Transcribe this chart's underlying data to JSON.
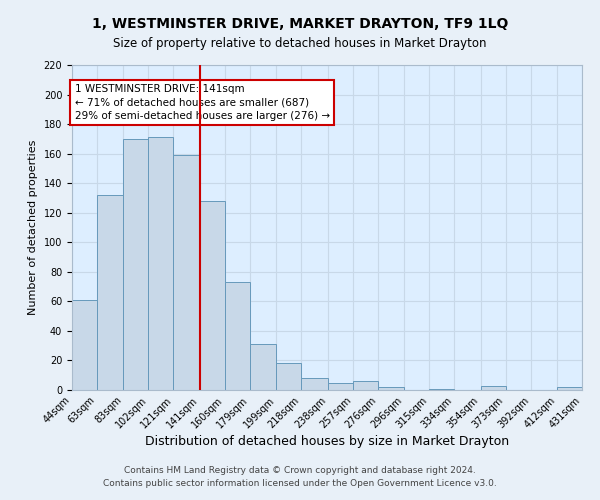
{
  "title": "1, WESTMINSTER DRIVE, MARKET DRAYTON, TF9 1LQ",
  "subtitle": "Size of property relative to detached houses in Market Drayton",
  "xlabel": "Distribution of detached houses by size in Market Drayton",
  "ylabel": "Number of detached properties",
  "bin_labels": [
    "44sqm",
    "63sqm",
    "83sqm",
    "102sqm",
    "121sqm",
    "141sqm",
    "160sqm",
    "179sqm",
    "199sqm",
    "218sqm",
    "238sqm",
    "257sqm",
    "276sqm",
    "296sqm",
    "315sqm",
    "334sqm",
    "354sqm",
    "373sqm",
    "392sqm",
    "412sqm",
    "431sqm"
  ],
  "bin_edges": [
    44,
    63,
    83,
    102,
    121,
    141,
    160,
    179,
    199,
    218,
    238,
    257,
    276,
    296,
    315,
    334,
    354,
    373,
    392,
    412,
    431
  ],
  "bar_values": [
    61,
    132,
    170,
    171,
    159,
    128,
    73,
    31,
    18,
    8,
    5,
    6,
    2,
    0,
    1,
    0,
    3,
    0,
    0,
    2
  ],
  "bar_color": "#c8d8e8",
  "bar_edge_color": "#6699bb",
  "vline_x": 141,
  "vline_color": "#cc0000",
  "annotation_title": "1 WESTMINSTER DRIVE: 141sqm",
  "annotation_line1": "← 71% of detached houses are smaller (687)",
  "annotation_line2": "29% of semi-detached houses are larger (276) →",
  "annotation_box_color": "#cc0000",
  "ylim": [
    0,
    220
  ],
  "yticks": [
    0,
    20,
    40,
    60,
    80,
    100,
    120,
    140,
    160,
    180,
    200,
    220
  ],
  "grid_color": "#c8d8e8",
  "background_color": "#ddeeff",
  "fig_background": "#e8f0f8",
  "footer_line1": "Contains HM Land Registry data © Crown copyright and database right 2024.",
  "footer_line2": "Contains public sector information licensed under the Open Government Licence v3.0.",
  "title_fontsize": 10,
  "subtitle_fontsize": 8.5,
  "xlabel_fontsize": 9,
  "ylabel_fontsize": 8,
  "tick_fontsize": 7,
  "footer_fontsize": 6.5,
  "annotation_fontsize": 7.5
}
